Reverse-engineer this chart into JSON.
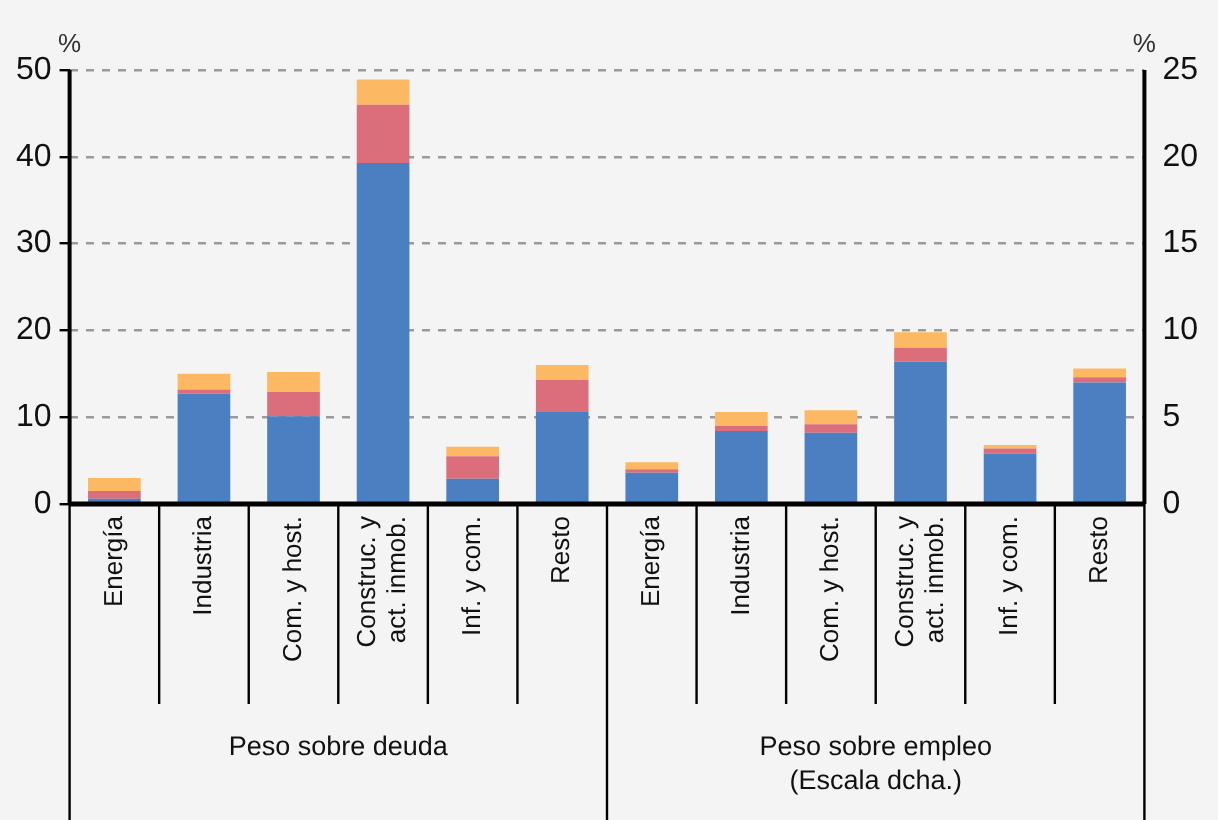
{
  "chart_data": {
    "type": "bar",
    "stacked": true,
    "grid": "y",
    "ylabel": "%",
    "y2label": "%",
    "categories": [
      "Energía",
      "Industria",
      "Com. y host.",
      "Construc. y act. inmob.",
      "Inf. y com.",
      "Resto",
      "Energía",
      "Industria",
      "Com. y host.",
      "Construc. y act. inmob.",
      "Inf. y com.",
      "Resto"
    ],
    "series": [
      {
        "color": "#4a7fc1",
        "values": [
          0.6,
          12.7,
          10.1,
          39.3,
          2.9,
          10.6,
          null,
          null,
          null,
          null,
          null,
          null
        ]
      },
      {
        "color": "#dc6e7c",
        "values": [
          0.9,
          0.5,
          2.8,
          6.7,
          2.6,
          3.7,
          null,
          null,
          null,
          null,
          null,
          null
        ]
      },
      {
        "color": "#fdb863",
        "values": [
          1.5,
          1.8,
          2.3,
          2.9,
          1.1,
          1.7,
          null,
          null,
          null,
          null,
          null,
          null
        ]
      },
      {
        "color": "#4a7fc1",
        "axis": "y2",
        "values": [
          null,
          null,
          null,
          null,
          null,
          null,
          1.8,
          4.2,
          4.1,
          8.2,
          2.9,
          7.0
        ]
      },
      {
        "color": "#dc6e7c",
        "axis": "y2",
        "values": [
          null,
          null,
          null,
          null,
          null,
          null,
          0.2,
          0.3,
          0.5,
          0.8,
          0.3,
          0.3
        ]
      },
      {
        "color": "#fdb863",
        "axis": "y2",
        "values": [
          null,
          null,
          null,
          null,
          null,
          null,
          0.4,
          0.8,
          0.8,
          0.9,
          0.2,
          0.5
        ]
      }
    ],
    "ylim": [
      0,
      50
    ],
    "yticks": [
      0,
      10,
      20,
      30,
      40,
      50
    ],
    "y2lim": [
      0,
      25
    ],
    "y2ticks": [
      0,
      5,
      10,
      15,
      20,
      25
    ],
    "annotations": [
      "Peso sobre deuda",
      "Peso sobre empleo (Escala dcha.)"
    ]
  }
}
